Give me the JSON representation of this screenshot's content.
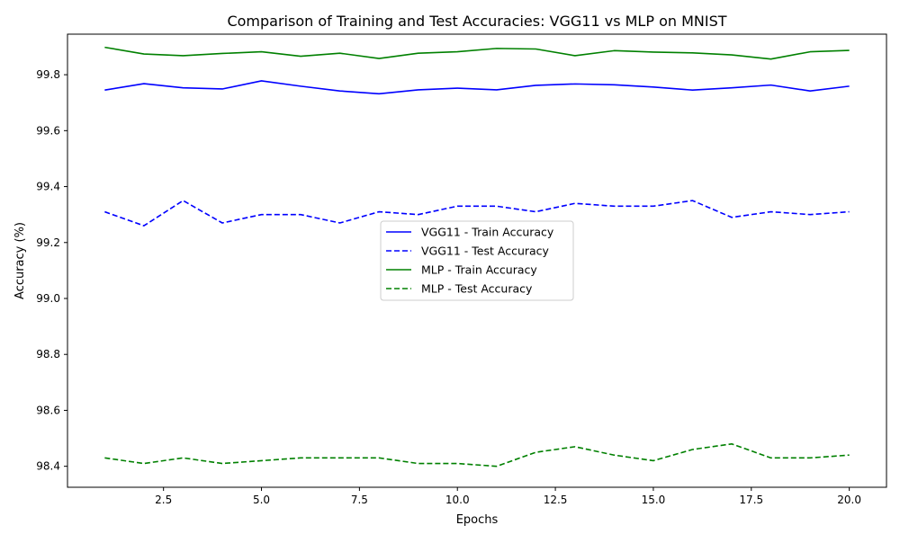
{
  "chart_data": {
    "type": "line",
    "title": "Comparison of Training and Test Accuracies: VGG11 vs MLP on MNIST",
    "xlabel": "Epochs",
    "ylabel": "Accuracy (%)",
    "xlim": [
      0.05,
      20.95
    ],
    "ylim": [
      98.325,
      99.945
    ],
    "xticks": [
      2.5,
      5.0,
      7.5,
      10.0,
      12.5,
      15.0,
      17.5,
      20.0
    ],
    "xtick_labels": [
      "2.5",
      "5.0",
      "7.5",
      "10.0",
      "12.5",
      "15.0",
      "17.5",
      "20.0"
    ],
    "yticks": [
      98.4,
      98.6,
      98.8,
      99.0,
      99.2,
      99.4,
      99.6,
      99.8
    ],
    "ytick_labels": [
      "98.4",
      "98.6",
      "98.8",
      "99.0",
      "99.2",
      "99.4",
      "99.6",
      "99.8"
    ],
    "grid": false,
    "legend_position": "center",
    "x": [
      1,
      2,
      3,
      4,
      5,
      6,
      7,
      8,
      9,
      10,
      11,
      12,
      13,
      14,
      15,
      16,
      17,
      18,
      19,
      20
    ],
    "series": [
      {
        "name": "VGG11 - Train Accuracy",
        "color": "#0000ff",
        "style": "solid",
        "values": [
          99.745,
          99.768,
          99.753,
          99.749,
          99.778,
          99.759,
          99.742,
          99.732,
          99.746,
          99.752,
          99.746,
          99.762,
          99.767,
          99.764,
          99.756,
          99.745,
          99.753,
          99.763,
          99.742,
          99.759
        ]
      },
      {
        "name": "VGG11 - Test Accuracy",
        "color": "#0000ff",
        "style": "dashed",
        "values": [
          99.31,
          99.26,
          99.35,
          99.27,
          99.3,
          99.3,
          99.27,
          99.31,
          99.3,
          99.33,
          99.33,
          99.31,
          99.34,
          99.33,
          99.33,
          99.35,
          99.29,
          99.31,
          99.3,
          99.31
        ]
      },
      {
        "name": "MLP - Train Accuracy",
        "color": "#008000",
        "style": "solid",
        "values": [
          99.898,
          99.874,
          99.868,
          99.876,
          99.882,
          99.866,
          99.877,
          99.858,
          99.877,
          99.882,
          99.894,
          99.892,
          99.868,
          99.886,
          99.881,
          99.878,
          99.871,
          99.856,
          99.882,
          99.887
        ]
      },
      {
        "name": "MLP - Test Accuracy",
        "color": "#008000",
        "style": "dashed",
        "values": [
          98.43,
          98.41,
          98.43,
          98.41,
          98.42,
          98.43,
          98.43,
          98.43,
          98.41,
          98.41,
          98.4,
          98.45,
          98.47,
          98.44,
          98.42,
          98.46,
          98.48,
          98.43,
          98.43,
          98.44
        ]
      }
    ]
  }
}
